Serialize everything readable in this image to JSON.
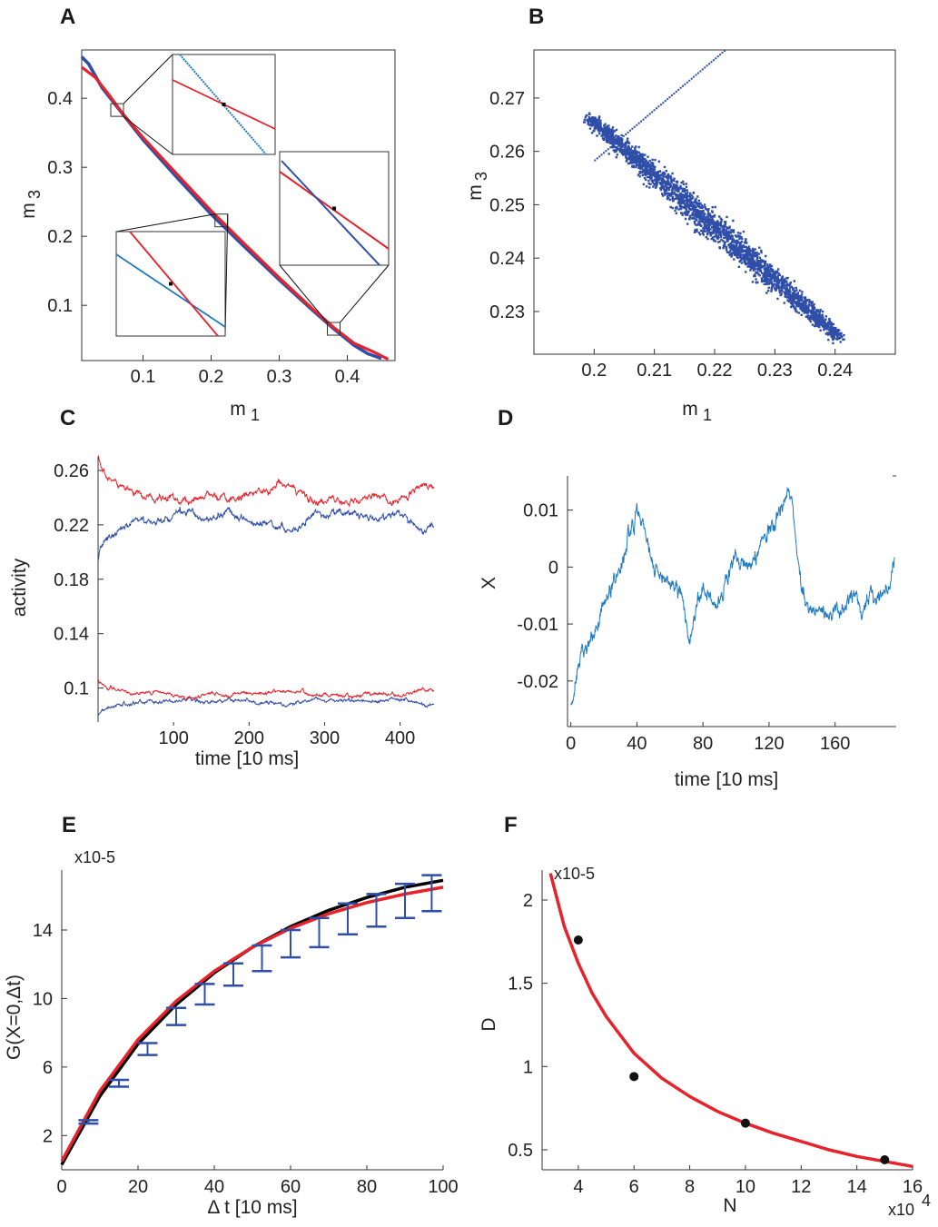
{
  "colors": {
    "red": "#e8222a",
    "blue": "#2f4ea8",
    "lightblue": "#1f7bc0",
    "black": "#000000"
  },
  "chart_data": [
    {
      "panel": "A",
      "type": "line",
      "xlabel": "m",
      "xlabel_sub": "1",
      "ylabel": "m",
      "ylabel_sub": "3",
      "xlim": [
        0.01,
        0.47
      ],
      "ylim": [
        0.02,
        0.47
      ],
      "xticks": [
        "0.1",
        "0.2",
        "0.3",
        "0.4"
      ],
      "yticks": [
        "0.1",
        "0.2",
        "0.3",
        "0.4"
      ],
      "series": [
        {
          "color": "blue",
          "x": [
            0.01,
            0.02,
            0.04,
            0.06,
            0.1,
            0.15,
            0.2,
            0.25,
            0.3,
            0.35,
            0.38,
            0.41,
            0.43,
            0.45
          ],
          "y": [
            0.46,
            0.45,
            0.415,
            0.39,
            0.34,
            0.285,
            0.232,
            0.184,
            0.137,
            0.092,
            0.066,
            0.042,
            0.03,
            0.023
          ]
        },
        {
          "color": "red",
          "x": [
            0.01,
            0.03,
            0.05,
            0.07,
            0.1,
            0.15,
            0.2,
            0.25,
            0.3,
            0.35,
            0.38,
            0.41,
            0.44,
            0.46
          ],
          "y": [
            0.445,
            0.43,
            0.405,
            0.378,
            0.343,
            0.29,
            0.237,
            0.188,
            0.14,
            0.094,
            0.068,
            0.045,
            0.032,
            0.022
          ]
        }
      ],
      "zoom_points": [
        [
          0.062,
          0.383
        ],
        [
          0.215,
          0.223
        ],
        [
          0.38,
          0.066
        ]
      ]
    },
    {
      "panel": "B",
      "type": "scatter",
      "xlabel": "m",
      "xlabel_sub": "1",
      "ylabel": "m",
      "ylabel_sub": "3",
      "xlim": [
        0.19,
        0.25
      ],
      "ylim": [
        0.222,
        0.279
      ],
      "xticks": [
        "0.2",
        "0.21",
        "0.22",
        "0.23",
        "0.24"
      ],
      "yticks": [
        "0.23",
        "0.24",
        "0.25",
        "0.26",
        "0.27"
      ],
      "band_start": [
        0.199,
        0.2665
      ],
      "band_end": [
        0.2405,
        0.2255
      ],
      "dotted_line_start": [
        0.2,
        0.2585
      ],
      "dotted_line_end": [
        0.2215,
        0.279
      ]
    },
    {
      "panel": "C",
      "type": "line",
      "xlabel": "time [10 ms]",
      "ylabel": "activity",
      "xlim": [
        0,
        445
      ],
      "ylim": [
        0.075,
        0.27
      ],
      "xticks": [
        "100",
        "200",
        "300",
        "400"
      ],
      "yticks": [
        "0.1",
        "0.14",
        "0.18",
        "0.22",
        "0.26"
      ],
      "upper_mean": 0.233,
      "lower_mean": 0.093
    },
    {
      "panel": "D",
      "type": "line",
      "xlabel": "time [10 ms]",
      "ylabel": "X",
      "xlim": [
        -2,
        197
      ],
      "ylim": [
        -0.028,
        0.016
      ],
      "xticks": [
        "0",
        "40",
        "80",
        "120",
        "160"
      ],
      "yticks": [
        "-0.02",
        "-0.01",
        "0",
        "0.01"
      ],
      "x": [
        0,
        2,
        4,
        6,
        8,
        12,
        16,
        20,
        25,
        30,
        35,
        40,
        44,
        48,
        52,
        56,
        60,
        64,
        68,
        70,
        72,
        74,
        76,
        80,
        84,
        88,
        92,
        96,
        100,
        104,
        108,
        112,
        116,
        120,
        124,
        128,
        131,
        134,
        136,
        139,
        142,
        145,
        148,
        152,
        156,
        160,
        164,
        168,
        172,
        176,
        180,
        184,
        188,
        192,
        196
      ],
      "y": [
        -0.024,
        -0.023,
        -0.018,
        -0.015,
        -0.014,
        -0.013,
        -0.011,
        -0.006,
        -0.003,
        0.0,
        0.005,
        0.009,
        0.008,
        0.003,
        -0.001,
        -0.002,
        -0.003,
        -0.004,
        -0.006,
        -0.01,
        -0.013,
        -0.011,
        -0.007,
        -0.003,
        -0.006,
        -0.007,
        -0.005,
        -0.001,
        0.002,
        0.001,
        0.0,
        0.002,
        0.005,
        0.006,
        0.008,
        0.011,
        0.013,
        0.012,
        0.006,
        -0.002,
        -0.006,
        -0.008,
        -0.007,
        -0.008,
        -0.009,
        -0.007,
        -0.008,
        -0.006,
        -0.004,
        -0.008,
        -0.005,
        -0.006,
        -0.005,
        -0.004,
        0.002
      ]
    },
    {
      "panel": "E",
      "type": "line",
      "xlabel": "Δ t [10 ms]",
      "ylabel": "G(X=0,Δt)",
      "yexp": "x10-5",
      "xlim": [
        0,
        100
      ],
      "ylim": [
        0,
        17.5
      ],
      "xticks": [
        "0",
        "20",
        "40",
        "60",
        "80",
        "100"
      ],
      "yticks": [
        "2",
        "6",
        "10",
        "14"
      ],
      "black": {
        "x": [
          0,
          10,
          20,
          30,
          40,
          50,
          60,
          70,
          80,
          90,
          100
        ],
        "y": [
          0.3,
          4.3,
          7.35,
          9.65,
          11.5,
          13.0,
          14.2,
          15.15,
          15.9,
          16.5,
          16.9
        ]
      },
      "red": {
        "x": [
          0,
          10,
          20,
          30,
          40,
          50,
          60,
          70,
          80,
          90,
          100
        ],
        "y": [
          0.5,
          4.6,
          7.6,
          9.85,
          11.6,
          13.0,
          14.1,
          14.95,
          15.6,
          16.1,
          16.5
        ]
      },
      "errorbars": {
        "x": [
          7,
          15,
          22.5,
          30,
          37.5,
          45,
          52.5,
          60,
          67.5,
          75,
          82.5,
          90,
          97
        ],
        "y": [
          2.8,
          5.05,
          7.05,
          8.95,
          10.25,
          11.4,
          12.35,
          13.2,
          13.85,
          14.65,
          15.15,
          15.7,
          16.15
        ],
        "err": [
          0.1,
          0.2,
          0.35,
          0.5,
          0.6,
          0.65,
          0.75,
          0.8,
          0.85,
          0.9,
          0.95,
          1.0,
          1.05
        ]
      }
    },
    {
      "panel": "F",
      "type": "scatter",
      "xlabel": "N",
      "xexp": "x10",
      "xexp_sup": "4",
      "ylabel": "D",
      "yexp": "x10-5",
      "xlim": [
        2.7,
        16
      ],
      "ylim": [
        0.38,
        2.18
      ],
      "xticks": [
        "4",
        "6",
        "8",
        "10",
        "12",
        "14",
        "16"
      ],
      "yticks": [
        "0.5",
        "1",
        "1.5",
        "2"
      ],
      "points": {
        "x": [
          4,
          6,
          10,
          15
        ],
        "y": [
          1.76,
          0.94,
          0.66,
          0.44
        ]
      },
      "fit": {
        "x": [
          3,
          3.5,
          4,
          4.5,
          5,
          6,
          7,
          8,
          9,
          10,
          11,
          12,
          13,
          14,
          15,
          16
        ],
        "y": [
          2.16,
          1.84,
          1.62,
          1.44,
          1.3,
          1.08,
          0.93,
          0.82,
          0.73,
          0.66,
          0.6,
          0.55,
          0.5,
          0.46,
          0.43,
          0.4
        ]
      }
    }
  ]
}
